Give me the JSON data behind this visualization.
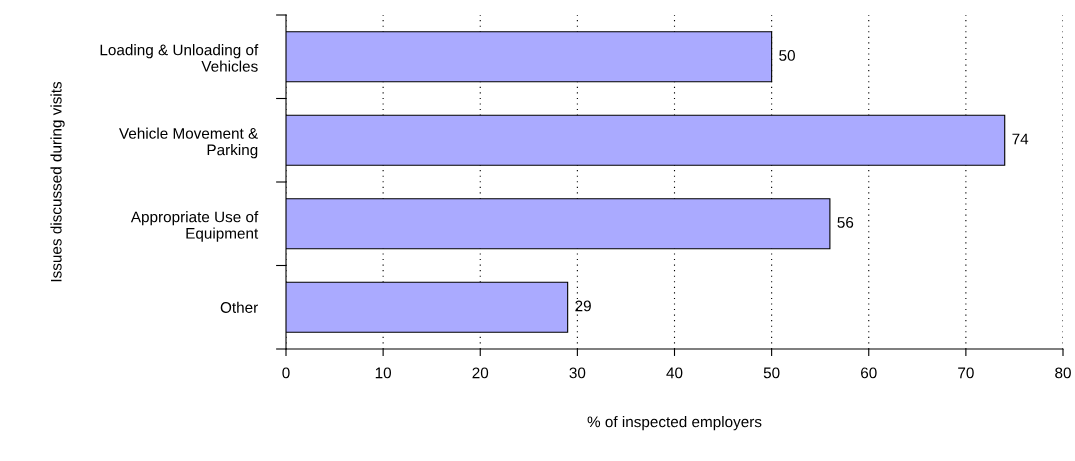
{
  "chart_data": {
    "type": "bar",
    "orientation": "horizontal",
    "categories": [
      "Loading & Unloading of\nVehicles",
      "Vehicle Movement &\nParking",
      "Appropriate Use of\nEquipment",
      "Other"
    ],
    "values": [
      50,
      74,
      56,
      29
    ],
    "color": "#aaaaff",
    "data_labels": true,
    "xlabel": "% of inspected employers",
    "ylabel": "Issues discussed during visits",
    "xlim": [
      0,
      80
    ],
    "xticks": [
      0,
      10,
      20,
      30,
      40,
      50,
      60,
      70,
      80
    ],
    "grid": "x",
    "legend": false
  }
}
